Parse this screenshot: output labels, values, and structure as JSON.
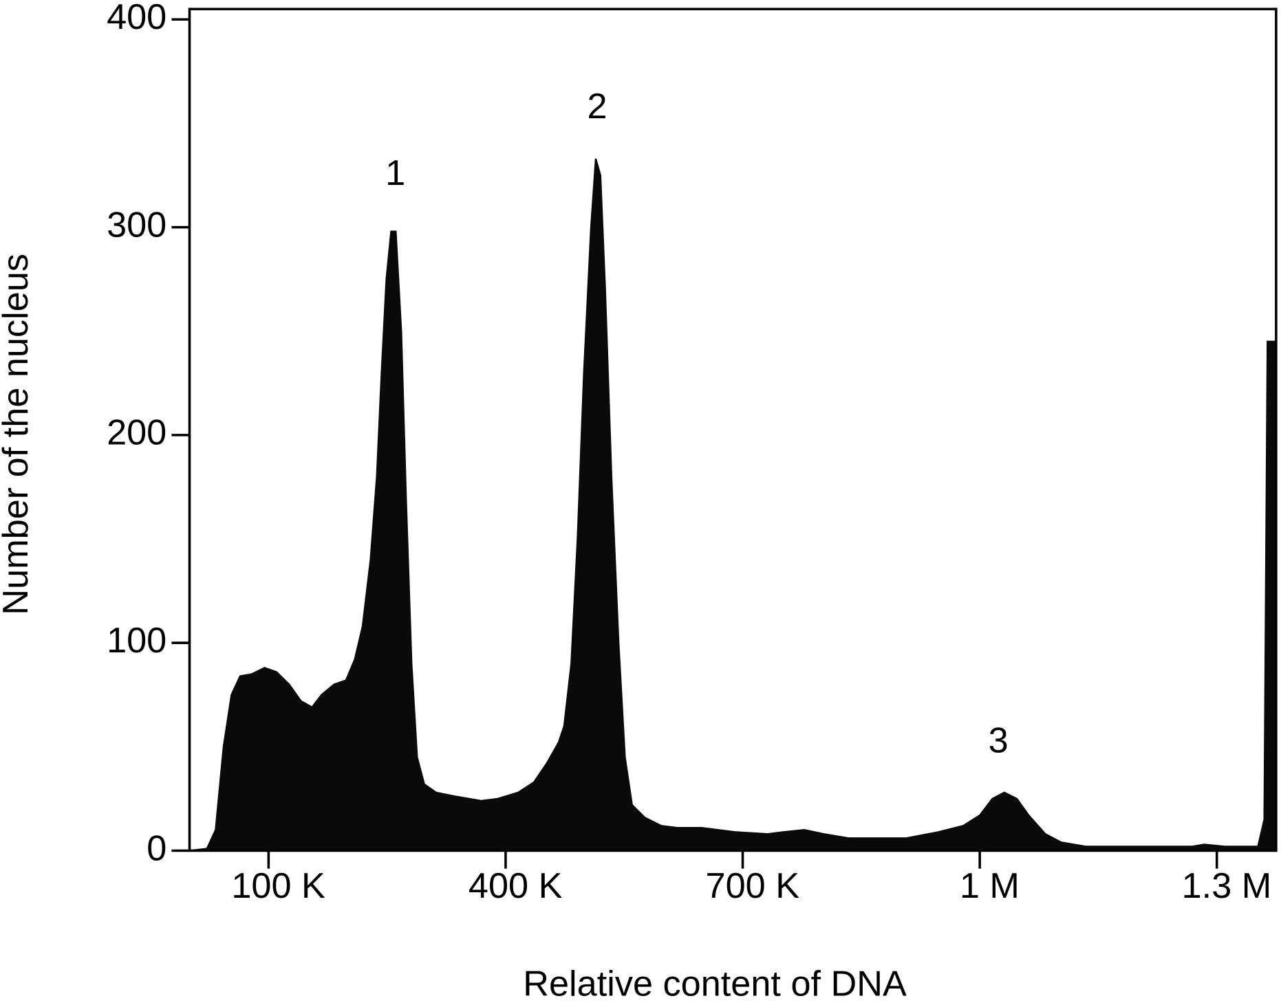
{
  "chart_data": {
    "type": "area",
    "color": "#0a0a0a",
    "x_label": "Relative content of DNA",
    "y_label": "Number of the nucleus",
    "annotations": [
      "1",
      "2",
      "3"
    ],
    "xlim": [
      0,
      1375000
    ],
    "ylim": [
      0,
      405
    ],
    "xticks": [
      {
        "value": 100000,
        "label": "100 K"
      },
      {
        "value": 400000,
        "label": "400 K"
      },
      {
        "value": 700000,
        "label": "700 K"
      },
      {
        "value": 1000000,
        "label": "1 M"
      },
      {
        "value": 1300000,
        "label": "1.3 M"
      }
    ],
    "yticks": [
      0,
      100,
      200,
      300,
      400
    ],
    "x": [
      0,
      22000,
      33000,
      43000,
      53000,
      64000,
      79000,
      95000,
      110000,
      126000,
      141000,
      155000,
      167000,
      183000,
      198000,
      209000,
      219000,
      229000,
      237000,
      243000,
      249000,
      255000,
      261000,
      268000,
      274000,
      281000,
      288000,
      297000,
      312000,
      338000,
      369000,
      390000,
      416000,
      436000,
      452000,
      467000,
      474000,
      483000,
      491000,
      499000,
      508000,
      514000,
      520000,
      526000,
      534000,
      543000,
      551000,
      560000,
      576000,
      597000,
      617000,
      648000,
      690000,
      731000,
      752000,
      778000,
      803000,
      834000,
      876000,
      907000,
      948000,
      979000,
      1000000,
      1016000,
      1031000,
      1047000,
      1062000,
      1083000,
      1103000,
      1134000,
      1207000,
      1269000,
      1284000,
      1310000,
      1352000,
      1360000,
      1364000,
      1374000
    ],
    "values": [
      0,
      1,
      10,
      50,
      75,
      84,
      85,
      88,
      86,
      80,
      72,
      69,
      75,
      80,
      82,
      92,
      108,
      140,
      180,
      230,
      275,
      298,
      298,
      250,
      170,
      90,
      45,
      32,
      28,
      26,
      24,
      25,
      28,
      33,
      42,
      52,
      60,
      90,
      150,
      230,
      300,
      333,
      325,
      270,
      180,
      100,
      45,
      22,
      16,
      12,
      11,
      11,
      9,
      8,
      9,
      10,
      8,
      6,
      6,
      6,
      9,
      12,
      17,
      25,
      28,
      25,
      17,
      8,
      4,
      2,
      2,
      2,
      3,
      2,
      2,
      15,
      245,
      245
    ]
  }
}
